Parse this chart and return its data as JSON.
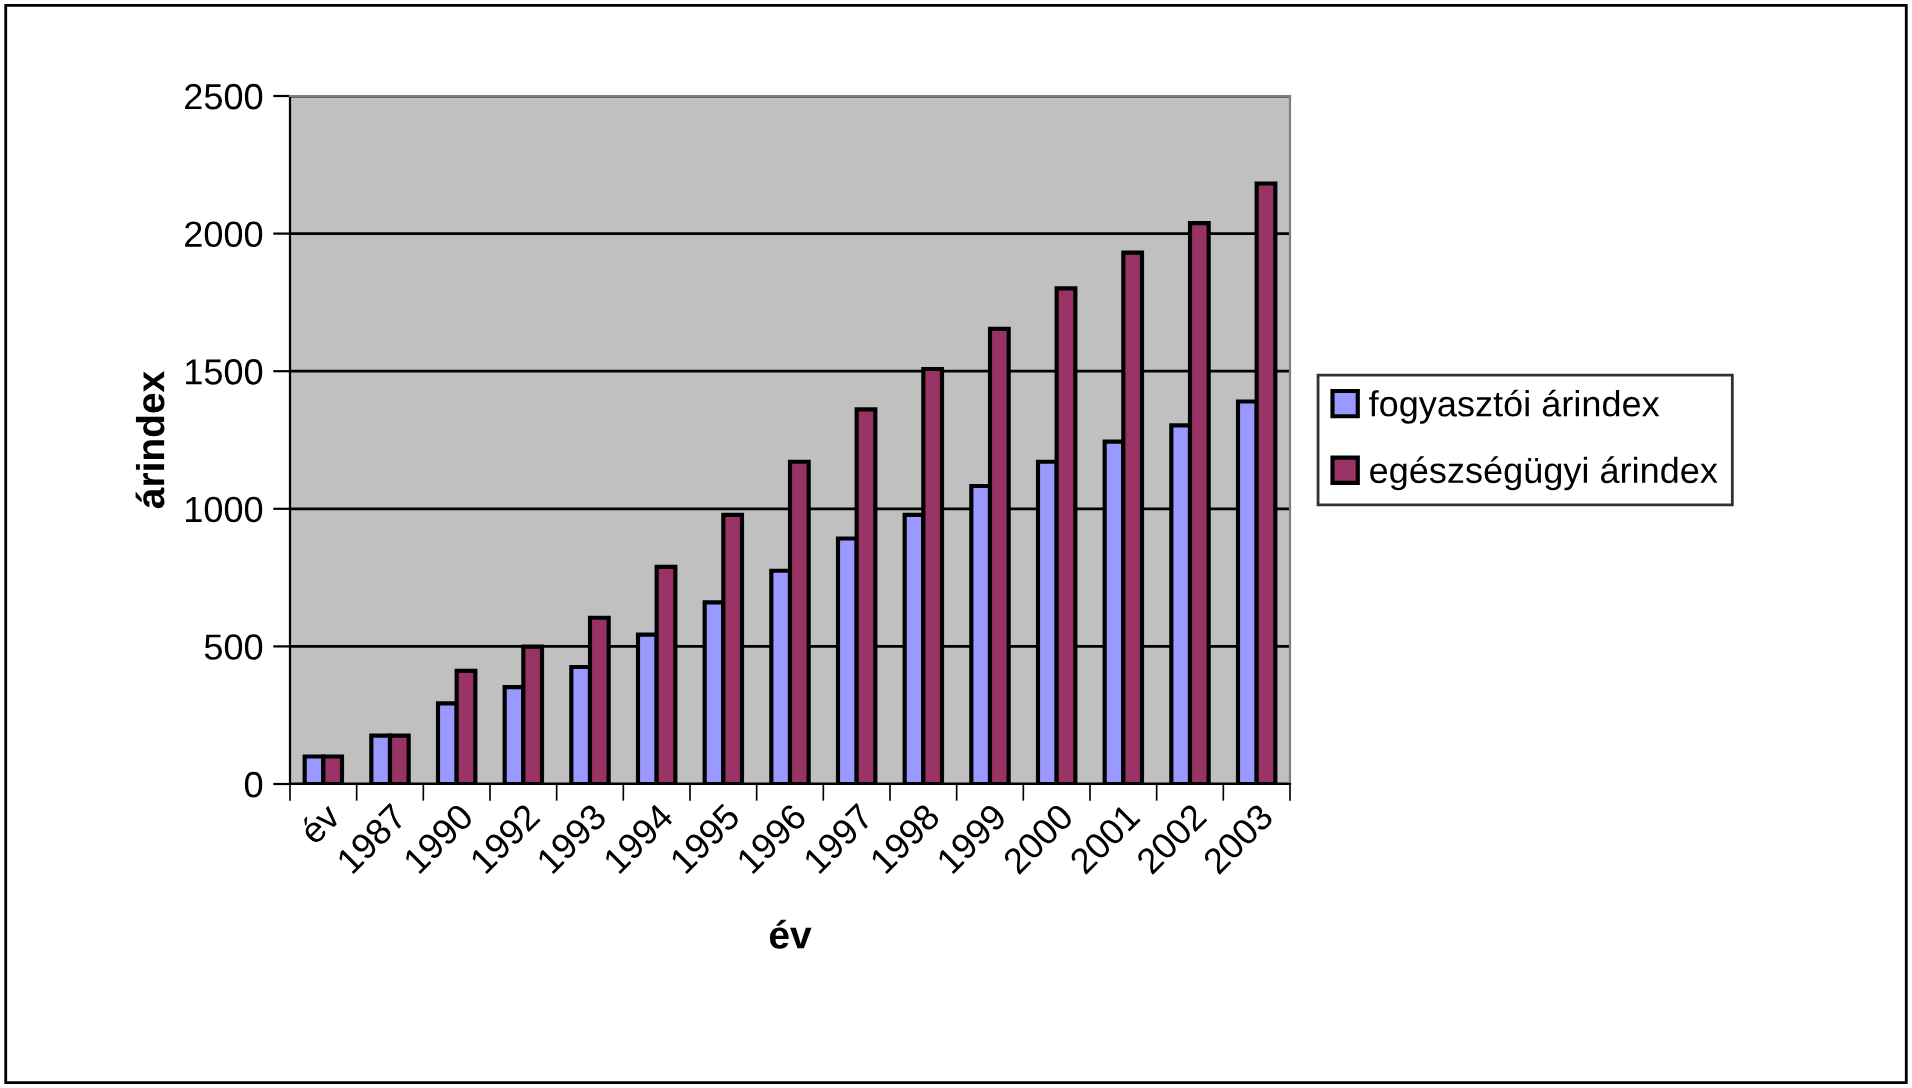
{
  "chart_data": {
    "type": "bar",
    "xlabel": "év",
    "ylabel": "árindex",
    "categories": [
      "év",
      "1987",
      "1990",
      "1992",
      "1993",
      "1994",
      "1995",
      "1996",
      "1997",
      "1998",
      "1999",
      "2000",
      "2001",
      "2002",
      "2003"
    ],
    "series": [
      {
        "name": "fogyasztói árindex",
        "color": "#9999ff",
        "values": [
          100,
          176,
          293,
          352,
          425,
          543,
          660,
          775,
          892,
          978,
          1083,
          1171,
          1244,
          1303,
          1390
        ]
      },
      {
        "name": "egészségügyi árindex",
        "color": "#993366",
        "values": [
          100,
          176,
          411,
          499,
          604,
          789,
          978,
          1171,
          1361,
          1508,
          1654,
          1801,
          1931,
          2038,
          2182
        ]
      }
    ],
    "ylim": [
      0,
      2500
    ],
    "yticks": [
      0,
      500,
      1000,
      1500,
      2000,
      2500
    ],
    "grid": "y",
    "legend": "right"
  }
}
